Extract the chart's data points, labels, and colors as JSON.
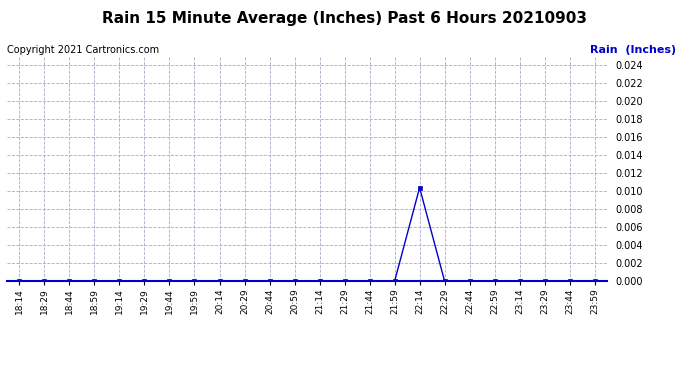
{
  "title": "Rain 15 Minute Average (Inches) Past 6 Hours 20210903",
  "copyright": "Copyright 2021 Cartronics.com",
  "legend_label": "Rain  (Inches)",
  "line_color": "#0000cc",
  "background_color": "#ffffff",
  "plot_bg_color": "#ffffff",
  "grid_color": "#aaaacc",
  "title_fontsize": 11,
  "copyright_fontsize": 7,
  "tick_labels": [
    "18:14",
    "18:29",
    "18:44",
    "18:59",
    "19:14",
    "19:29",
    "19:44",
    "19:59",
    "20:14",
    "20:29",
    "20:44",
    "20:59",
    "21:14",
    "21:29",
    "21:44",
    "21:59",
    "22:14",
    "22:29",
    "22:44",
    "22:59",
    "23:14",
    "23:29",
    "23:44",
    "23:59"
  ],
  "values": [
    0.0,
    0.0,
    0.0,
    0.0,
    0.0,
    0.0,
    0.0,
    0.0,
    0.0,
    0.0,
    0.0,
    0.0,
    0.0,
    0.0,
    0.0,
    0.0,
    0.0104,
    0.0,
    0.0,
    0.0,
    0.0,
    0.0,
    0.0,
    0.0
  ],
  "ylim": [
    0.0,
    0.025
  ],
  "yticks": [
    0.0,
    0.002,
    0.004,
    0.006,
    0.008,
    0.01,
    0.012,
    0.014,
    0.016,
    0.018,
    0.02,
    0.022,
    0.024
  ]
}
